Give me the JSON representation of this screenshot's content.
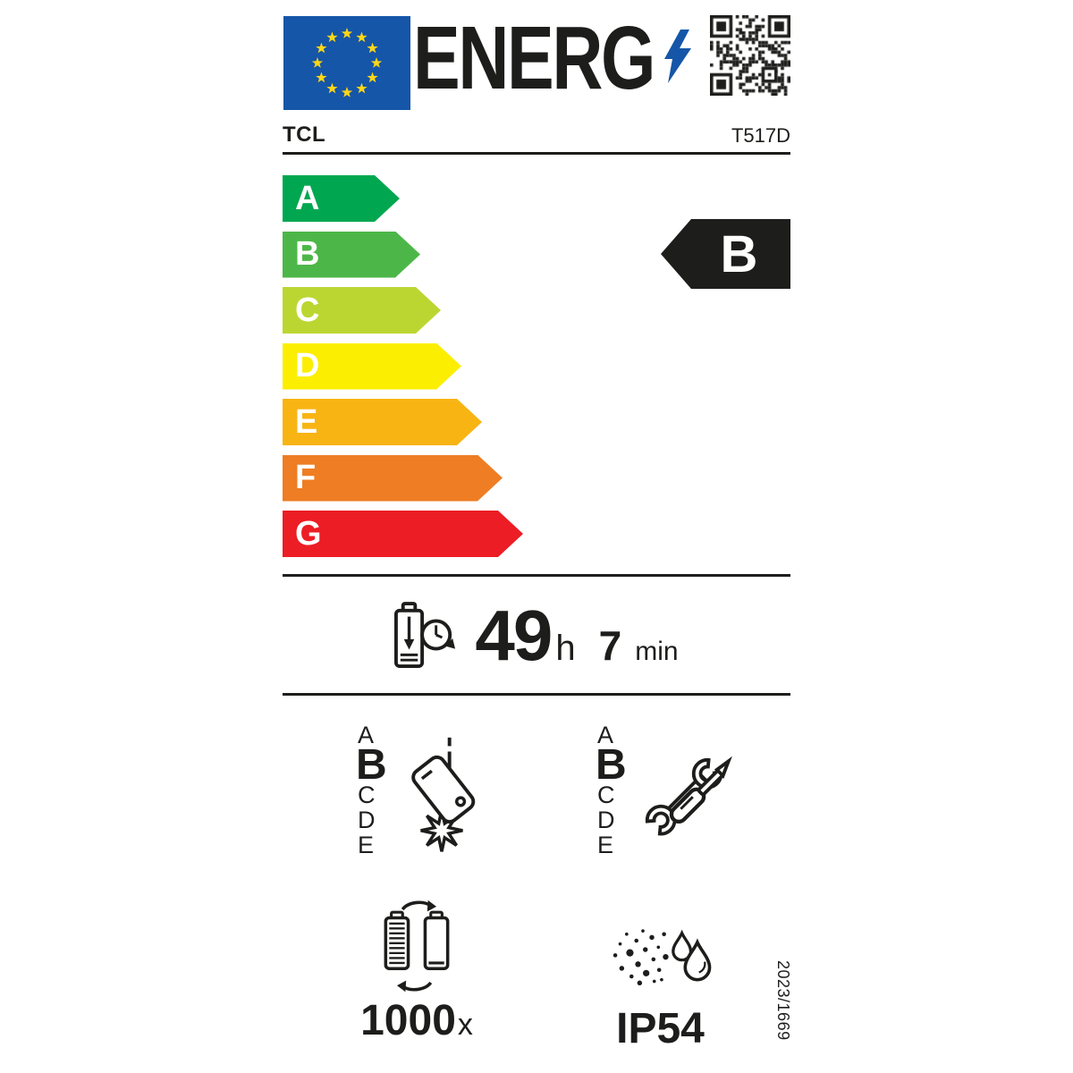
{
  "header": {
    "brand": "TCL",
    "model": "T517D",
    "logo_text": "ENERG"
  },
  "colors": {
    "eu_blue": "#1556a8",
    "star_yellow": "#ffd617",
    "ink": "#1d1d1b"
  },
  "scale": {
    "classes": [
      {
        "label": "A",
        "color": "#00a750"
      },
      {
        "label": "B",
        "color": "#4cb748"
      },
      {
        "label": "C",
        "color": "#bcd631"
      },
      {
        "label": "D",
        "color": "#fcee00"
      },
      {
        "label": "E",
        "color": "#f8b412"
      },
      {
        "label": "F",
        "color": "#ef7d23"
      },
      {
        "label": "G",
        "color": "#ec1d24"
      }
    ],
    "selected": {
      "label": "B",
      "color": "#1d1d1b"
    }
  },
  "battery_endurance": {
    "hours": "49",
    "hours_unit": "h",
    "minutes": "7",
    "minutes_unit": "min"
  },
  "drop_class": {
    "letters": [
      "A",
      "B",
      "C",
      "D",
      "E"
    ],
    "selected": "B"
  },
  "repair_class": {
    "letters": [
      "A",
      "B",
      "C",
      "D",
      "E"
    ],
    "selected": "B"
  },
  "battery_cycles": {
    "value": "1000",
    "unit": "x"
  },
  "ip_rating": {
    "value": "IP54"
  },
  "regulation": {
    "number": "2023/1669"
  },
  "icons": {
    "eu_flag": "eu-flag",
    "lightning": "lightning-bolt-icon",
    "qr": "qr-code",
    "battery_clock": "battery-endurance-icon",
    "falling_phone": "drop-resistance-icon",
    "tools": "repairability-icon",
    "battery_swap": "battery-cycles-icon",
    "dust_water": "ingress-protection-icon"
  }
}
